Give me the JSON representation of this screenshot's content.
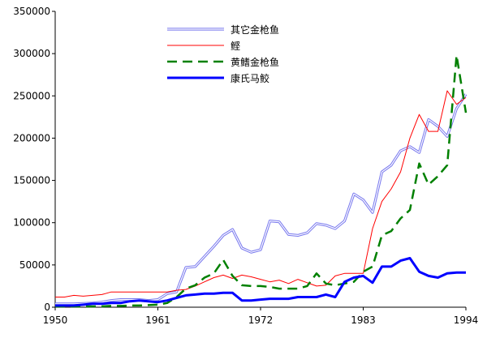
{
  "chart_data": {
    "type": "line",
    "title": "",
    "xlabel": "",
    "ylabel": "",
    "xlim": [
      1950,
      1994
    ],
    "ylim": [
      0,
      350000
    ],
    "x_ticks": [
      "1950",
      "1961",
      "1972",
      "1983",
      "1994"
    ],
    "y_ticks": [
      "0",
      "50000",
      "100000",
      "150000",
      "200000",
      "250000",
      "300000",
      "350000"
    ],
    "grid": false,
    "legend_position": "top-center",
    "x": [
      1950,
      1951,
      1952,
      1953,
      1954,
      1955,
      1956,
      1957,
      1958,
      1959,
      1960,
      1961,
      1962,
      1963,
      1964,
      1965,
      1966,
      1967,
      1968,
      1969,
      1970,
      1971,
      1972,
      1973,
      1974,
      1975,
      1976,
      1977,
      1978,
      1979,
      1980,
      1981,
      1982,
      1983,
      1984,
      1985,
      1986,
      1987,
      1988,
      1989,
      1990,
      1991,
      1992,
      1993,
      1994
    ],
    "series": [
      {
        "name": "其它金枪鱼",
        "color": "#7777ee",
        "style": "double",
        "values": [
          4000,
          4000,
          4000,
          4500,
          5000,
          6000,
          8000,
          9000,
          9000,
          9000,
          8000,
          9000,
          16000,
          18000,
          47000,
          48000,
          60000,
          72000,
          85000,
          92000,
          70000,
          65000,
          68000,
          102000,
          101000,
          86000,
          85000,
          88000,
          99000,
          97000,
          93000,
          102000,
          134000,
          127000,
          112000,
          160000,
          168000,
          185000,
          190000,
          183000,
          222000,
          214000,
          202000,
          235000,
          252000
        ]
      },
      {
        "name": "鲣",
        "color": "#ff0000",
        "style": "solid-thin",
        "values": [
          12000,
          12000,
          14000,
          13000,
          14000,
          15000,
          18000,
          18000,
          18000,
          18000,
          18000,
          18000,
          18000,
          20000,
          21000,
          25000,
          30000,
          35000,
          38000,
          34000,
          38000,
          36000,
          33000,
          30000,
          32000,
          28000,
          33000,
          29000,
          25000,
          26000,
          37000,
          40000,
          40000,
          40000,
          93000,
          125000,
          140000,
          160000,
          200000,
          228000,
          208000,
          208000,
          256000,
          240000,
          248000
        ]
      },
      {
        "name": "黄鳍金枪鱼",
        "color": "#008000",
        "style": "dashed",
        "values": [
          1000,
          1000,
          1000,
          1000,
          1000,
          1000,
          1500,
          1500,
          2000,
          2000,
          2500,
          3000,
          5000,
          12000,
          22000,
          26000,
          35000,
          40000,
          56000,
          37000,
          26000,
          25000,
          25000,
          24000,
          22000,
          22000,
          22000,
          25000,
          40000,
          28000,
          26000,
          28000,
          30000,
          42000,
          48000,
          85000,
          90000,
          105000,
          115000,
          170000,
          145000,
          155000,
          168000,
          298000,
          230000
        ]
      },
      {
        "name": "康氏马鲛",
        "color": "#0000ff",
        "style": "solid-thick",
        "values": [
          2000,
          2000,
          2000,
          3000,
          4000,
          4000,
          5000,
          5000,
          7000,
          8000,
          7000,
          6000,
          8000,
          11000,
          14000,
          15000,
          16000,
          16000,
          17000,
          17000,
          8000,
          8000,
          9000,
          10000,
          10000,
          10000,
          12000,
          12000,
          12000,
          15000,
          12000,
          30000,
          35000,
          37000,
          29000,
          48000,
          48000,
          55000,
          58000,
          42000,
          37000,
          35000,
          40000,
          41000,
          41000
        ]
      }
    ]
  }
}
